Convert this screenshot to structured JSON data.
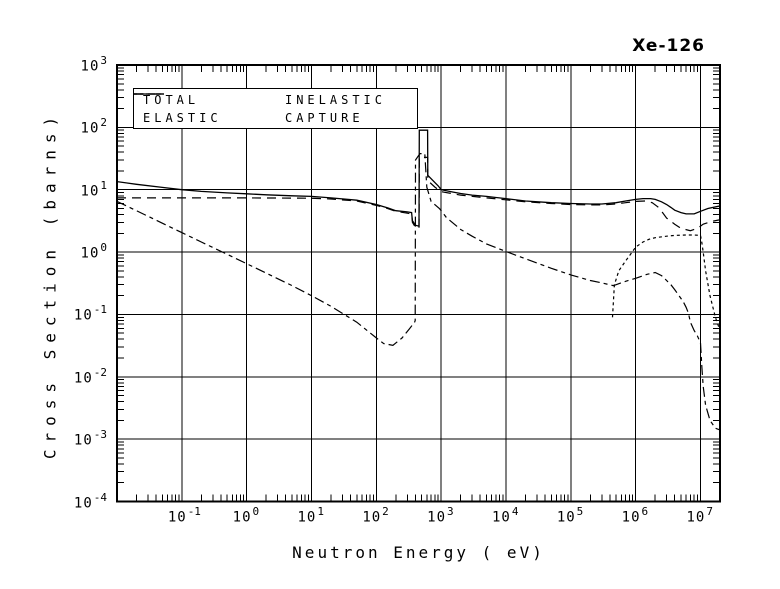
{
  "colors": {
    "background": "#ffffff",
    "foreground": "#000000"
  },
  "chart_data": {
    "type": "line",
    "title": "Xe-126",
    "xlabel": "Neutron Energy ( eV)",
    "ylabel": "Cross Section (barns)",
    "x_scale": "log",
    "y_scale": "log",
    "xlim": [
      0.01,
      20000000.0
    ],
    "ylim": [
      0.0001,
      1000
    ],
    "grid": true,
    "legend_position": "top-left-inside",
    "tick_base": "10",
    "x_tick_exponents": [
      "-1",
      "0",
      "1",
      "2",
      "3",
      "4",
      "5",
      "6",
      "7"
    ],
    "y_tick_exponents": [
      "3",
      "2",
      "1",
      "0",
      "-1",
      "-2",
      "-3",
      "-4"
    ],
    "series": [
      {
        "name": "TOTAL",
        "style": "solid",
        "dash": "",
        "points": [
          [
            0.01,
            13.5
          ],
          [
            0.02,
            12.2
          ],
          [
            0.05,
            10.9
          ],
          [
            0.1,
            10.0
          ],
          [
            0.2,
            9.4
          ],
          [
            0.5,
            8.9
          ],
          [
            1,
            8.6
          ],
          [
            2,
            8.3
          ],
          [
            5,
            8.0
          ],
          [
            10,
            7.8
          ],
          [
            20,
            7.4
          ],
          [
            50,
            6.8
          ],
          [
            100,
            5.8
          ],
          [
            150,
            5.1
          ],
          [
            200,
            4.6
          ],
          [
            300,
            4.4
          ],
          [
            350,
            4.3
          ],
          [
            360,
            3.2
          ],
          [
            400,
            2.7
          ],
          [
            455,
            2.6
          ],
          [
            460,
            90
          ],
          [
            618,
            90
          ],
          [
            622,
            17
          ],
          [
            700,
            15
          ],
          [
            800,
            13
          ],
          [
            900,
            11.5
          ],
          [
            1000,
            10
          ],
          [
            1500,
            9.2
          ],
          [
            2000,
            8.7
          ],
          [
            3000,
            8.2
          ],
          [
            5000,
            7.8
          ],
          [
            7000,
            7.5
          ],
          [
            10000,
            7.2
          ],
          [
            20000,
            6.6
          ],
          [
            50000,
            6.2
          ],
          [
            100000,
            6.0
          ],
          [
            200000,
            5.9
          ],
          [
            300000,
            5.9
          ],
          [
            500000,
            6.2
          ],
          [
            700000,
            6.6
          ],
          [
            1000000,
            7.0
          ],
          [
            1300000,
            7.2
          ],
          [
            1700000,
            7.2
          ],
          [
            2000000,
            7.0
          ],
          [
            2500000,
            6.4
          ],
          [
            3000000,
            5.8
          ],
          [
            3500000,
            5.2
          ],
          [
            4000000,
            4.7
          ],
          [
            5000000,
            4.3
          ],
          [
            6000000,
            4.1
          ],
          [
            8000000,
            4.1
          ],
          [
            10000000,
            4.5
          ],
          [
            13000000,
            5.0
          ],
          [
            20000000,
            5.5
          ]
        ]
      },
      {
        "name": "ELASTIC",
        "style": "long-dash",
        "dash": "9 6",
        "points": [
          [
            0.01,
            7.4
          ],
          [
            0.1,
            7.4
          ],
          [
            1,
            7.4
          ],
          [
            10,
            7.3
          ],
          [
            20,
            7.1
          ],
          [
            50,
            6.6
          ],
          [
            100,
            5.6
          ],
          [
            150,
            5.0
          ],
          [
            200,
            4.5
          ],
          [
            300,
            4.2
          ],
          [
            350,
            4.1
          ],
          [
            360,
            3.0
          ],
          [
            400,
            2.5
          ],
          [
            455,
            2.4
          ],
          [
            460,
            33
          ],
          [
            618,
            33
          ],
          [
            622,
            14
          ],
          [
            800,
            11
          ],
          [
            1000,
            9.3
          ],
          [
            2000,
            8.2
          ],
          [
            5000,
            7.4
          ],
          [
            10000,
            6.9
          ],
          [
            20000,
            6.4
          ],
          [
            50000,
            6.0
          ],
          [
            100000,
            5.8
          ],
          [
            200000,
            5.7
          ],
          [
            300000,
            5.7
          ],
          [
            500000,
            5.9
          ],
          [
            700000,
            6.2
          ],
          [
            1000000,
            6.5
          ],
          [
            1400000,
            6.6
          ],
          [
            1800000,
            6.2
          ],
          [
            2200000,
            5.3
          ],
          [
            2600000,
            4.3
          ],
          [
            3000000,
            3.5
          ],
          [
            4000000,
            2.8
          ],
          [
            5000000,
            2.4
          ],
          [
            7000000,
            2.2
          ],
          [
            9000000,
            2.4
          ],
          [
            11000000,
            2.8
          ],
          [
            15000000,
            3.1
          ],
          [
            20000000,
            3.3
          ]
        ]
      },
      {
        "name": "INELASTIC",
        "style": "fine-dash",
        "dash": "3 3",
        "points": [
          [
            440000,
            0.09
          ],
          [
            470000,
            0.3
          ],
          [
            550000,
            0.5
          ],
          [
            700000,
            0.72
          ],
          [
            850000,
            0.95
          ],
          [
            1000000,
            1.2
          ],
          [
            1300000,
            1.45
          ],
          [
            1600000,
            1.6
          ],
          [
            2000000,
            1.7
          ],
          [
            3000000,
            1.8
          ],
          [
            4000000,
            1.85
          ],
          [
            6000000,
            1.88
          ],
          [
            8000000,
            1.88
          ],
          [
            10000000,
            1.85
          ],
          [
            10500000,
            1.4
          ],
          [
            11000000,
            1.0
          ],
          [
            12000000,
            0.5
          ],
          [
            14000000,
            0.2
          ],
          [
            17000000,
            0.09
          ],
          [
            20000000,
            0.055
          ]
        ]
      },
      {
        "name": "CAPTURE",
        "style": "dash-dot",
        "dash": "10 4 4 4",
        "points": [
          [
            0.01,
            6.5
          ],
          [
            0.02,
            4.6
          ],
          [
            0.05,
            2.9
          ],
          [
            0.1,
            2.05
          ],
          [
            0.2,
            1.45
          ],
          [
            0.5,
            0.92
          ],
          [
            1,
            0.65
          ],
          [
            2,
            0.46
          ],
          [
            5,
            0.29
          ],
          [
            10,
            0.2
          ],
          [
            20,
            0.135
          ],
          [
            50,
            0.075
          ],
          [
            100,
            0.042
          ],
          [
            130,
            0.034
          ],
          [
            180,
            0.032
          ],
          [
            250,
            0.042
          ],
          [
            320,
            0.058
          ],
          [
            390,
            0.075
          ],
          [
            398,
            0.08
          ],
          [
            402,
            30
          ],
          [
            470,
            38
          ],
          [
            560,
            38
          ],
          [
            600,
            11
          ],
          [
            700,
            6.5
          ],
          [
            940,
            5.0
          ],
          [
            1200,
            3.6
          ],
          [
            2000,
            2.3
          ],
          [
            3000,
            1.8
          ],
          [
            5000,
            1.35
          ],
          [
            10000,
            1.02
          ],
          [
            20000,
            0.78
          ],
          [
            50000,
            0.55
          ],
          [
            100000,
            0.43
          ],
          [
            200000,
            0.35
          ],
          [
            300000,
            0.32
          ],
          [
            450000,
            0.29
          ],
          [
            500000,
            0.3
          ],
          [
            700000,
            0.34
          ],
          [
            1000000,
            0.38
          ],
          [
            1500000,
            0.44
          ],
          [
            2000000,
            0.47
          ],
          [
            2500000,
            0.42
          ],
          [
            3000000,
            0.35
          ],
          [
            3500000,
            0.3
          ],
          [
            4000000,
            0.25
          ],
          [
            4500000,
            0.21
          ],
          [
            5000000,
            0.18
          ],
          [
            5500000,
            0.155
          ],
          [
            6000000,
            0.13
          ],
          [
            6500000,
            0.105
          ],
          [
            7000000,
            0.075
          ],
          [
            8000000,
            0.055
          ],
          [
            9000000,
            0.045
          ],
          [
            10000000,
            0.035
          ],
          [
            10500000,
            0.014
          ],
          [
            11000000,
            0.007
          ],
          [
            12000000,
            0.0035
          ],
          [
            14000000,
            0.002
          ],
          [
            17000000,
            0.0015
          ],
          [
            20000000,
            0.0014
          ]
        ]
      }
    ]
  }
}
